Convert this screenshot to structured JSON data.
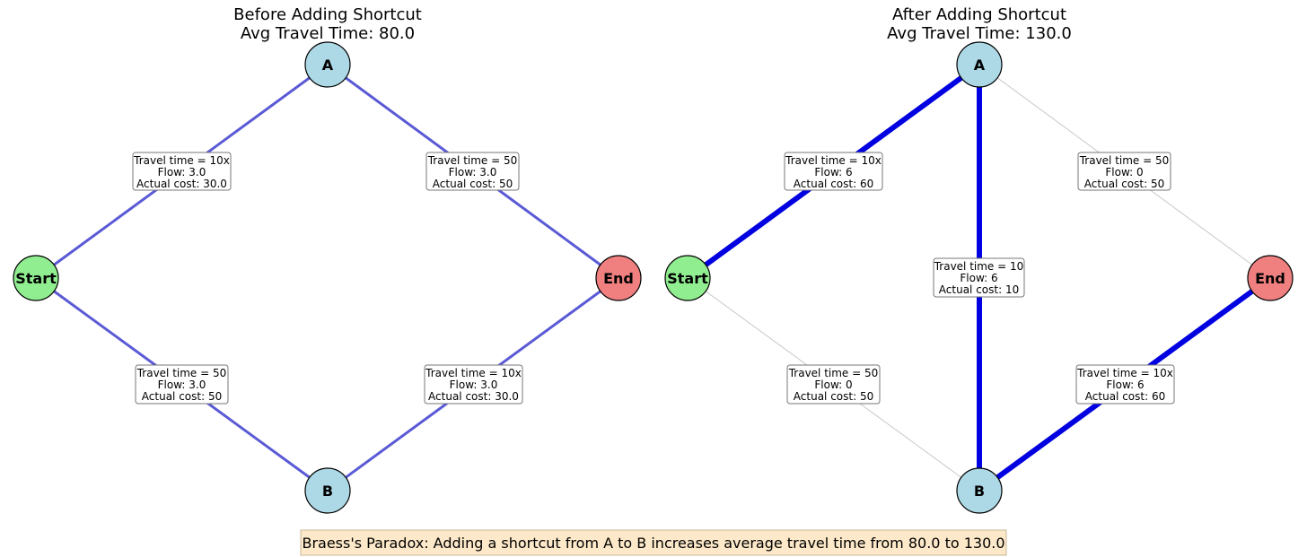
{
  "colors": {
    "active_edge_before": "#5a5ad6",
    "active_edge_after": "#0000e0",
    "idle_edge": "#c8c8c8",
    "node_start": "#90ee90",
    "node_end": "#f08080",
    "node_mid": "#add8e6",
    "caption_bg": "#fde9c9",
    "caption_border": "#c8b898"
  },
  "panels": [
    {
      "title_line1": "Before Adding Shortcut",
      "title_line2": "Avg Travel Time: 80.0",
      "nodes": {
        "start": "Start",
        "a": "A",
        "b": "B",
        "end": "End"
      },
      "edges": {
        "start_a": {
          "line1": "Travel time = 10x",
          "line2": "Flow: 3.0",
          "line3": "Actual cost: 30.0",
          "state": "active_before"
        },
        "a_end": {
          "line1": "Travel time = 50",
          "line2": "Flow: 3.0",
          "line3": "Actual cost: 50",
          "state": "active_before"
        },
        "start_b": {
          "line1": "Travel time = 50",
          "line2": "Flow: 3.0",
          "line3": "Actual cost: 50",
          "state": "active_before"
        },
        "b_end": {
          "line1": "Travel time = 10x",
          "line2": "Flow: 3.0",
          "line3": "Actual cost: 30.0",
          "state": "active_before"
        }
      }
    },
    {
      "title_line1": "After Adding Shortcut",
      "title_line2": "Avg Travel Time: 130.0",
      "nodes": {
        "start": "Start",
        "a": "A",
        "b": "B",
        "end": "End"
      },
      "edges": {
        "start_a": {
          "line1": "Travel time = 10x",
          "line2": "Flow: 6",
          "line3": "Actual cost: 60",
          "state": "active_after"
        },
        "a_end": {
          "line1": "Travel time = 50",
          "line2": "Flow: 0",
          "line3": "Actual cost: 50",
          "state": "idle"
        },
        "start_b": {
          "line1": "Travel time = 50",
          "line2": "Flow: 0",
          "line3": "Actual cost: 50",
          "state": "idle"
        },
        "b_end": {
          "line1": "Travel time = 10x",
          "line2": "Flow: 6",
          "line3": "Actual cost: 60",
          "state": "active_after"
        },
        "a_b": {
          "line1": "Travel time = 10",
          "line2": "Flow: 6",
          "line3": "Actual cost: 10",
          "state": "active_after"
        }
      }
    }
  ],
  "caption": "Braess's Paradox: Adding a shortcut from A to B increases average travel time from 80.0 to 130.0"
}
